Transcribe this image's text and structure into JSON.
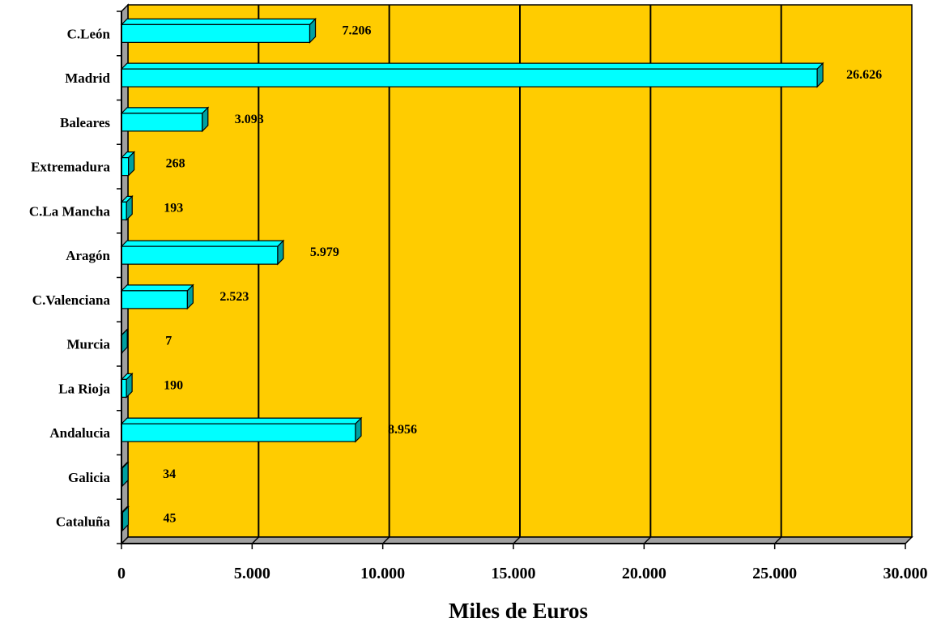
{
  "chart_data": {
    "type": "bar",
    "orientation": "horizontal",
    "categories": [
      "C.León",
      "Madrid",
      "Baleares",
      "Extremadura",
      "C.La Mancha",
      "Aragón",
      "C.Valenciana",
      "Murcia",
      "La Rioja",
      "Andalucia",
      "Galicia",
      "Cataluña"
    ],
    "values": [
      7206,
      26626,
      3093,
      268,
      193,
      5979,
      2523,
      7,
      190,
      8956,
      34,
      45
    ],
    "value_labels": [
      "7.206",
      "26.626",
      "3.093",
      "268",
      "193",
      "5.979",
      "2.523",
      "7",
      "190",
      "8.956",
      "34",
      "45"
    ],
    "xlim": [
      0,
      30000
    ],
    "x_ticks": [
      0,
      5000,
      10000,
      15000,
      20000,
      25000,
      30000
    ],
    "x_tick_labels": [
      "0",
      "5.000",
      "10.000",
      "15.000",
      "20.000",
      "25.000",
      "30.000"
    ],
    "xlabel": "Miles de Euros",
    "ylabel": "",
    "title": "",
    "grid": true,
    "legend": "none",
    "colors": {
      "plot_background": "#FFCC00",
      "bar_face": "#00FFFF",
      "bar_side": "#00A0A0",
      "wall": "#A0A0A0"
    }
  }
}
